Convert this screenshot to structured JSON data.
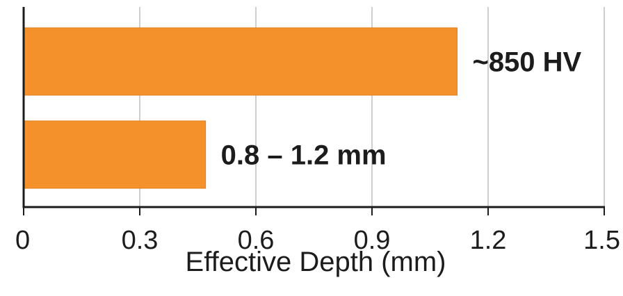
{
  "chart_data": {
    "type": "bar",
    "orientation": "horizontal",
    "title": "",
    "xlabel": "Effective Depth (mm)",
    "ylabel": "",
    "xlim": [
      0,
      1.5
    ],
    "x_ticks": [
      0,
      0.3,
      0.6,
      0.9,
      1.2,
      1.5
    ],
    "x_tick_labels": [
      "0",
      "0.3",
      "0.6",
      "0.9",
      "1.2",
      "1.5"
    ],
    "grid": "vertical",
    "legend": "none",
    "bars": [
      {
        "value": 1.12,
        "label": "~850 HV"
      },
      {
        "value": 0.47,
        "label": "0.8 – 1.2 mm"
      }
    ],
    "colors": {
      "bar": "#f5912a",
      "bar_edge": "#e07f1c",
      "grid": "#cfcfcf",
      "axis": "#1c1c1c"
    }
  }
}
